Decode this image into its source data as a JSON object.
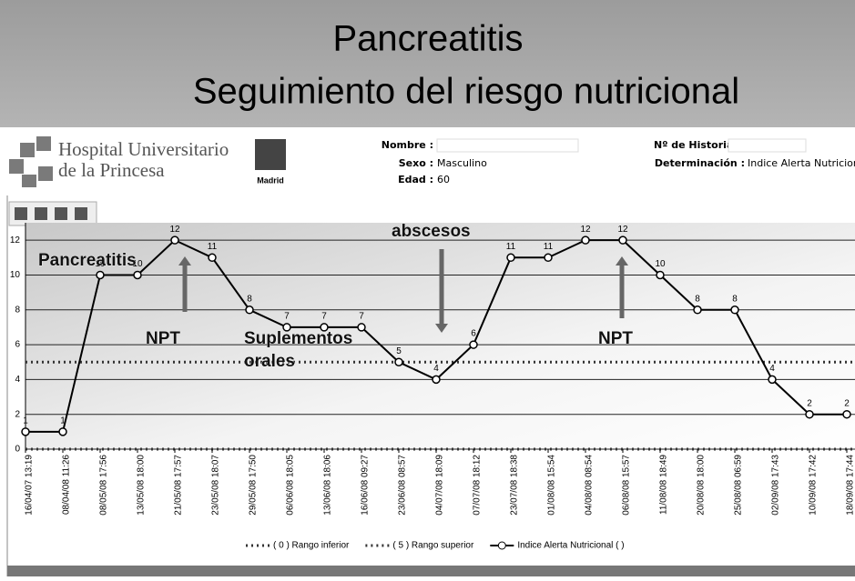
{
  "slide": {
    "title_lines": [
      "Pancreatitis",
      "Seguimiento del riesgo nutricional"
    ]
  },
  "header": {
    "hospital_lines": [
      "Hospital Universitario",
      "de la Princesa"
    ],
    "region": "Madrid",
    "nombre_label": "Nombre :",
    "sexo_label": "Sexo :",
    "sexo": "Masculino",
    "edad_label": "Edad :",
    "edad": "60",
    "historia_label": "Nº de Historia",
    "determinacion_label": "Determinación :",
    "determinacion": "Indice Alerta Nutricional"
  },
  "chart_data": {
    "type": "line",
    "categories": [
      "16/04/07 13:19",
      "08/04/08 11:26",
      "08/05/08 17:56",
      "13/05/08 18:00",
      "21/05/08 17:57",
      "23/05/08 18:07",
      "29/05/08 17:50",
      "06/06/08 18:05",
      "13/06/08 18:06",
      "16/06/08 09:27",
      "23/06/08 08:57",
      "04/07/08 18:09",
      "07/07/08 18:12",
      "23/07/08 18:38",
      "01/08/08 15:54",
      "04/08/08 08:54",
      "06/08/08 15:57",
      "11/08/08 18:49",
      "20/08/08 18:00",
      "25/08/08 06:59",
      "02/09/08 17:43",
      "10/09/08 17:42",
      "18/09/08 17:44"
    ],
    "series": [
      {
        "name": "Indice Alerta Nutricional ( )",
        "color": "#000000",
        "values": [
          1,
          1,
          10,
          10,
          12,
          11,
          8,
          7,
          7,
          7,
          5,
          4,
          6,
          11,
          11,
          12,
          12,
          10,
          8,
          8,
          4,
          2,
          2
        ]
      }
    ],
    "reference_lines": [
      {
        "name": "( 0 ) Rango inferior",
        "value": 0,
        "color": "#333333"
      },
      {
        "name": "( 5 ) Rango superior",
        "value": 5,
        "color": "#333333"
      }
    ],
    "ylim": [
      0,
      13
    ],
    "yticks": [
      0,
      2,
      4,
      6,
      8,
      10,
      12
    ],
    "grid": true,
    "annotations": [
      "Pancreatitis",
      "NPT",
      "Suplementos",
      "orales",
      "abscesos",
      "NPT"
    ]
  }
}
